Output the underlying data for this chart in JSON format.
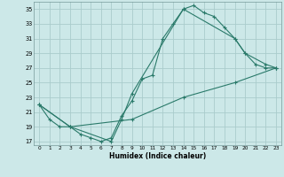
{
  "xlabel": "Humidex (Indice chaleur)",
  "bg_color": "#cce8e8",
  "grid_color": "#aacccc",
  "line_color": "#2a7a6a",
  "xlim": [
    -0.5,
    23.5
  ],
  "ylim": [
    16.5,
    36
  ],
  "xticks": [
    0,
    1,
    2,
    3,
    4,
    5,
    6,
    7,
    8,
    9,
    10,
    11,
    12,
    13,
    14,
    15,
    16,
    17,
    18,
    19,
    20,
    21,
    22,
    23
  ],
  "yticks": [
    17,
    19,
    21,
    23,
    25,
    27,
    29,
    31,
    33,
    35
  ],
  "line1_x": [
    0,
    1,
    2,
    3,
    4,
    5,
    6,
    7,
    8,
    9,
    10,
    11,
    12,
    13,
    14,
    15,
    16,
    17,
    18,
    19,
    20,
    21,
    22,
    23
  ],
  "line1_y": [
    22,
    20,
    19,
    19,
    18,
    17.5,
    17,
    17.5,
    20.5,
    22.5,
    25.5,
    26,
    31,
    33,
    35,
    35.5,
    34.5,
    34,
    32.5,
    31,
    29,
    27.5,
    27,
    27
  ],
  "line2_x": [
    0,
    3,
    7,
    8,
    9,
    14,
    19,
    20,
    22,
    23
  ],
  "line2_y": [
    22,
    19,
    17,
    20,
    23.5,
    35,
    31,
    29,
    27.5,
    27
  ],
  "line3_x": [
    0,
    3,
    9,
    14,
    19,
    23
  ],
  "line3_y": [
    22,
    19,
    20,
    23,
    25,
    27
  ]
}
